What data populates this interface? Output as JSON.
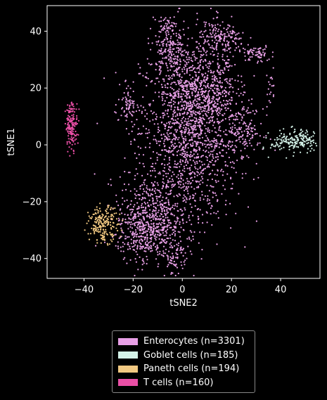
{
  "chart_data": {
    "type": "scatter",
    "title": "",
    "xlabel": "tSNE2",
    "ylabel": "tSNE1",
    "xlim": [
      -55,
      56
    ],
    "ylim": [
      -47,
      49
    ],
    "xticks": [
      -40,
      -20,
      0,
      20,
      40
    ],
    "yticks": [
      -40,
      -20,
      0,
      20,
      40
    ],
    "grid": false,
    "legend_position": "below",
    "series": [
      {
        "name": "Enterocytes (n=3301)",
        "color": "#e8a0e6",
        "n": 3301,
        "clusters": [
          {
            "center": [
              3,
              5
            ],
            "spread": [
              10,
              16
            ],
            "weight": 0.46
          },
          {
            "center": [
              -12,
              -25
            ],
            "spread": [
              7,
              7
            ],
            "weight": 0.14
          },
          {
            "center": [
              -17,
              -32
            ],
            "spread": [
              5,
              4
            ],
            "weight": 0.06
          },
          {
            "center": [
              10,
              20
            ],
            "spread": [
              6,
              6
            ],
            "weight": 0.09
          },
          {
            "center": [
              -5,
              33
            ],
            "spread": [
              3,
              5
            ],
            "weight": 0.05
          },
          {
            "center": [
              16,
              37
            ],
            "spread": [
              5,
              3
            ],
            "weight": 0.05
          },
          {
            "center": [
              30,
              32
            ],
            "spread": [
              3,
              1.5
            ],
            "weight": 0.02
          },
          {
            "center": [
              -22,
              15
            ],
            "spread": [
              2,
              3
            ],
            "weight": 0.02
          },
          {
            "center": [
              25,
              5
            ],
            "spread": [
              4,
              4
            ],
            "weight": 0.04
          },
          {
            "center": [
              -3,
              -40
            ],
            "spread": [
              3,
              3
            ],
            "weight": 0.02
          },
          {
            "center": [
              36,
              20
            ],
            "spread": [
              1,
              3
            ],
            "weight": 0.005
          },
          {
            "center": [
              -6,
              42
            ],
            "spread": [
              1.5,
              1.5
            ],
            "weight": 0.01
          }
        ]
      },
      {
        "name": "Goblet cells (n=185)",
        "color": "#d4f2e8",
        "n": 185,
        "clusters": [
          {
            "center": [
              44,
              1
            ],
            "spread": [
              4,
              2
            ],
            "weight": 0.7
          },
          {
            "center": [
              50,
              2
            ],
            "spread": [
              2,
              2
            ],
            "weight": 0.3
          }
        ]
      },
      {
        "name": "Paneth cells (n=194)",
        "color": "#f2c982",
        "n": 194,
        "clusters": [
          {
            "center": [
              -32,
              -28
            ],
            "spread": [
              3,
              3
            ],
            "weight": 1.0
          }
        ]
      },
      {
        "name": "T cells (n=160)",
        "color": "#ea4fa6",
        "n": 160,
        "clusters": [
          {
            "center": [
              -45,
              7
            ],
            "spread": [
              1.2,
              4
            ],
            "weight": 1.0
          }
        ]
      }
    ]
  }
}
